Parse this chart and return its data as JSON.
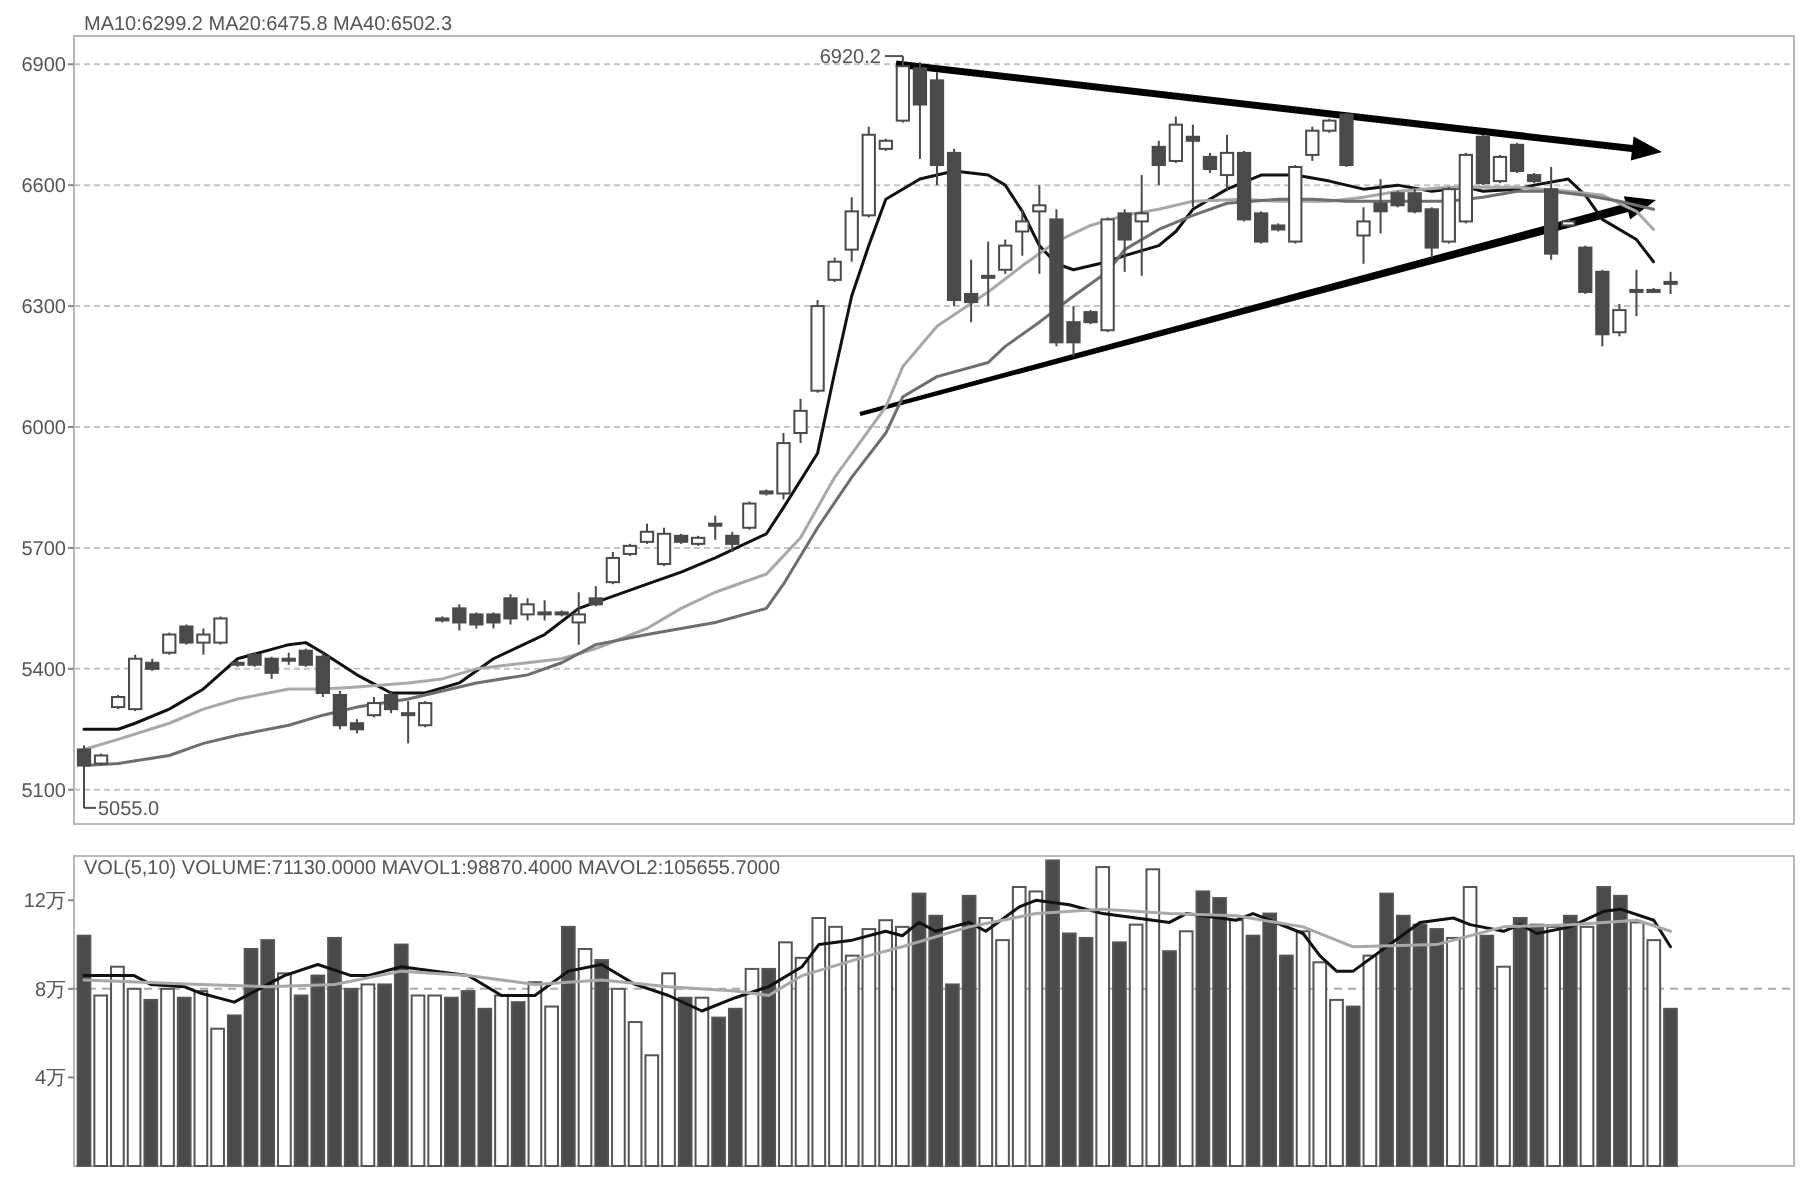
{
  "chart_data": [
    {
      "type": "candlestick",
      "title": "MA10:6299.2 MA20:6475.8 MA40:6502.3",
      "color": "#4a4a4a",
      "categories": [
        null,
        null,
        null,
        null,
        null,
        null,
        null,
        null,
        null,
        null,
        null,
        null,
        null,
        null,
        null,
        null,
        null,
        null,
        null,
        null,
        null,
        null,
        null,
        null,
        null,
        null,
        null,
        null,
        null,
        null,
        null,
        null,
        null,
        null,
        null,
        null,
        null,
        null,
        null,
        null,
        null,
        null,
        null,
        null,
        null,
        null,
        null,
        null,
        null,
        null,
        null,
        null,
        null,
        null,
        null,
        null,
        null,
        null,
        null,
        null,
        null,
        null,
        null,
        null,
        null,
        null,
        null,
        null,
        null,
        null,
        null,
        null,
        null,
        null,
        null,
        null,
        null,
        null,
        null,
        null,
        null,
        null,
        null,
        null,
        null,
        null,
        null,
        null,
        null,
        null,
        null,
        null,
        null,
        null
      ],
      "ohlc": [
        [
          5200,
          5210,
          5055,
          5160
        ],
        [
          5165,
          5190,
          5160,
          5185
        ],
        [
          5305,
          5335,
          5300,
          5330
        ],
        [
          5300,
          5435,
          5295,
          5425
        ],
        [
          5415,
          5425,
          5395,
          5400
        ],
        [
          5440,
          5490,
          5435,
          5485
        ],
        [
          5505,
          5510,
          5460,
          5465
        ],
        [
          5465,
          5500,
          5435,
          5485
        ],
        [
          5465,
          5530,
          5460,
          5525
        ],
        [
          5415,
          5420,
          5405,
          5410
        ],
        [
          5435,
          5440,
          5405,
          5410
        ],
        [
          5425,
          5430,
          5375,
          5390
        ],
        [
          5420,
          5440,
          5410,
          5425
        ],
        [
          5445,
          5450,
          5405,
          5410
        ],
        [
          5430,
          5440,
          5330,
          5340
        ],
        [
          5335,
          5345,
          5250,
          5260
        ],
        [
          5265,
          5275,
          5240,
          5250
        ],
        [
          5285,
          5330,
          5280,
          5315
        ],
        [
          5335,
          5345,
          5290,
          5300
        ],
        [
          5285,
          5320,
          5215,
          5290
        ],
        [
          5260,
          5320,
          5255,
          5315
        ],
        [
          5520,
          5530,
          5515,
          5525
        ],
        [
          5550,
          5560,
          5495,
          5515
        ],
        [
          5535,
          5540,
          5500,
          5510
        ],
        [
          5535,
          5540,
          5500,
          5515
        ],
        [
          5575,
          5585,
          5510,
          5525
        ],
        [
          5535,
          5575,
          5520,
          5560
        ],
        [
          5535,
          5570,
          5520,
          5540
        ],
        [
          5540,
          5545,
          5530,
          5535
        ],
        [
          5515,
          5590,
          5460,
          5535
        ],
        [
          5575,
          5605,
          5555,
          5560
        ],
        [
          5615,
          5690,
          5610,
          5675
        ],
        [
          5685,
          5710,
          5680,
          5705
        ],
        [
          5715,
          5760,
          5710,
          5740
        ],
        [
          5660,
          5750,
          5655,
          5735
        ],
        [
          5730,
          5735,
          5710,
          5715
        ],
        [
          5710,
          5730,
          5705,
          5725
        ],
        [
          5755,
          5780,
          5720,
          5760
        ],
        [
          5730,
          5740,
          5690,
          5710
        ],
        [
          5750,
          5815,
          5745,
          5810
        ],
        [
          5835,
          5845,
          5830,
          5840
        ],
        [
          5835,
          5985,
          5820,
          5960
        ],
        [
          5985,
          6070,
          5960,
          6040
        ],
        [
          6090,
          6315,
          6085,
          6300
        ],
        [
          6365,
          6420,
          6360,
          6410
        ],
        [
          6440,
          6570,
          6410,
          6535
        ],
        [
          6525,
          6745,
          6520,
          6725
        ],
        [
          6690,
          6715,
          6685,
          6710
        ],
        [
          6760,
          6920.2,
          6755,
          6895
        ],
        [
          6890,
          6905,
          6665,
          6800
        ],
        [
          6860,
          6880,
          6600,
          6650
        ],
        [
          6680,
          6690,
          6300,
          6315
        ],
        [
          6330,
          6415,
          6260,
          6310
        ],
        [
          6370,
          6460,
          6300,
          6375
        ],
        [
          6390,
          6465,
          6380,
          6450
        ],
        [
          6485,
          6540,
          6425,
          6510
        ],
        [
          6535,
          6600,
          6380,
          6550
        ],
        [
          6515,
          6540,
          6200,
          6210
        ],
        [
          6260,
          6300,
          6175,
          6210
        ],
        [
          6285,
          6290,
          6255,
          6260
        ],
        [
          6240,
          6520,
          6235,
          6515
        ],
        [
          6530,
          6540,
          6385,
          6465
        ],
        [
          6510,
          6625,
          6375,
          6530
        ],
        [
          6695,
          6710,
          6600,
          6650
        ],
        [
          6660,
          6770,
          6655,
          6750
        ],
        [
          6720,
          6750,
          6545,
          6710
        ],
        [
          6670,
          6680,
          6630,
          6640
        ],
        [
          6625,
          6725,
          6585,
          6680
        ],
        [
          6680,
          6685,
          6510,
          6515
        ],
        [
          6530,
          6535,
          6455,
          6460
        ],
        [
          6500,
          6505,
          6485,
          6490
        ],
        [
          6460,
          6650,
          6455,
          6645
        ],
        [
          6675,
          6745,
          6660,
          6735
        ],
        [
          6735,
          6765,
          6730,
          6760
        ],
        [
          6775,
          6780,
          6645,
          6650
        ],
        [
          6475,
          6545,
          6405,
          6510
        ],
        [
          6555,
          6615,
          6480,
          6535
        ],
        [
          6580,
          6585,
          6545,
          6550
        ],
        [
          6580,
          6590,
          6530,
          6535
        ],
        [
          6540,
          6545,
          6420,
          6445
        ],
        [
          6460,
          6595,
          6455,
          6590
        ],
        [
          6510,
          6680,
          6505,
          6675
        ],
        [
          6720,
          6725,
          6600,
          6605
        ],
        [
          6610,
          6675,
          6605,
          6670
        ],
        [
          6700,
          6705,
          6630,
          6635
        ],
        [
          6625,
          6630,
          6605,
          6610
        ],
        [
          6590,
          6645,
          6415,
          6430
        ],
        [
          6500,
          6515,
          6495,
          6510
        ],
        [
          6445,
          6450,
          6330,
          6335
        ],
        [
          6385,
          6390,
          6200,
          6230
        ],
        [
          6235,
          6305,
          6225,
          6290
        ],
        [
          6335,
          6390,
          6275,
          6340
        ],
        [
          6340,
          6345,
          6335,
          6335
        ],
        [
          6355,
          6385,
          6330,
          6360
        ]
      ],
      "series": [
        {
          "type": "line",
          "color": "#111111",
          "values": [
            5250,
            null,
            5250,
            5265,
            null,
            5300,
            null,
            5350,
            null,
            5425,
            null,
            null,
            5460,
            5465,
            5440,
            null,
            5385,
            null,
            5340,
            null,
            5340,
            null,
            5365,
            null,
            5425,
            null,
            null,
            5485,
            null,
            5550,
            5565,
            null,
            null,
            5610,
            null,
            5640,
            null,
            5675,
            null,
            null,
            5735,
            5800,
            null,
            5935,
            6135,
            6325,
            6450,
            6565,
            null,
            6615,
            null,
            6635,
            null,
            6625,
            6600,
            6535,
            6450,
            6405,
            6390,
            null,
            6410,
            6425,
            null,
            6450,
            6485,
            6540,
            null,
            6590,
            null,
            6625,
            null,
            6625,
            null,
            6610,
            null,
            6590,
            null,
            6600,
            null,
            6585,
            null,
            6595,
            6585,
            null,
            6590,
            6600,
            null,
            6615,
            6575,
            6515,
            null,
            6465,
            6410,
            null
          ]
        },
        {
          "type": "line",
          "color": "#a8a8a8",
          "values": [
            5200,
            null,
            5225,
            null,
            null,
            5265,
            null,
            5300,
            null,
            5325,
            null,
            null,
            5350,
            null,
            5350,
            null,
            5355,
            null,
            null,
            5365,
            null,
            5375,
            null,
            5400,
            null,
            null,
            5415,
            null,
            5425,
            null,
            5450,
            null,
            null,
            5500,
            null,
            5550,
            null,
            5590,
            null,
            null,
            5635,
            null,
            5725,
            null,
            5875,
            null,
            null,
            6050,
            6150,
            null,
            6250,
            null,
            null,
            6335,
            null,
            6400,
            null,
            6460,
            null,
            6500,
            null,
            6525,
            null,
            6540,
            null,
            6560,
            null,
            null,
            6565,
            null,
            6560,
            null,
            null,
            6560,
            null,
            6570,
            null,
            6585,
            null,
            null,
            6595,
            null,
            6595,
            null,
            6595,
            null,
            null,
            6585,
            null,
            6575,
            null,
            6535,
            6490,
            null
          ]
        },
        {
          "type": "line",
          "color": "#6e6e6e",
          "values": [
            5160,
            null,
            5165,
            null,
            null,
            5185,
            null,
            5215,
            null,
            5235,
            null,
            null,
            5260,
            null,
            5285,
            null,
            5305,
            null,
            null,
            5325,
            null,
            5345,
            null,
            5365,
            null,
            null,
            5385,
            null,
            5415,
            null,
            5460,
            null,
            null,
            5485,
            null,
            5500,
            null,
            5515,
            null,
            null,
            5550,
            5610,
            null,
            5750,
            null,
            5875,
            null,
            5985,
            6075,
            null,
            6125,
            null,
            null,
            6160,
            6200,
            null,
            6260,
            null,
            6325,
            null,
            6385,
            6440,
            null,
            6490,
            null,
            6525,
            null,
            6555,
            null,
            null,
            6565,
            null,
            6565,
            null,
            6560,
            null,
            null,
            6560,
            null,
            null,
            6560,
            null,
            6570,
            null,
            6585,
            null,
            6585,
            null,
            6575,
            null,
            6560,
            null,
            6540,
            null
          ]
        }
      ],
      "ylim": [
        5015,
        6970
      ],
      "yticks": [
        5100,
        5400,
        5700,
        6000,
        6300,
        6600,
        6900
      ],
      "grid": "y",
      "annotations": [
        "6920.2",
        "5055.0"
      ]
    },
    {
      "type": "bar",
      "title": "VOL(5,10) VOLUME:71130.0000 MAVOL1:98870.4000 MAVOL2:105655.7000",
      "categories": [
        null,
        null,
        null,
        null,
        null,
        null,
        null,
        null,
        null,
        null,
        null,
        null,
        null,
        null,
        null,
        null,
        null,
        null,
        null,
        null,
        null,
        null,
        null,
        null,
        null,
        null,
        null,
        null,
        null,
        null,
        null,
        null,
        null,
        null,
        null,
        null,
        null,
        null,
        null,
        null,
        null,
        null,
        null,
        null,
        null,
        null,
        null,
        null,
        null,
        null,
        null,
        null,
        null,
        null,
        null,
        null,
        null,
        null,
        null,
        null,
        null,
        null,
        null,
        null,
        null,
        null,
        null,
        null,
        null,
        null,
        null,
        null,
        null,
        null,
        null,
        null,
        null,
        null,
        null,
        null,
        null,
        null,
        null,
        null,
        null,
        null,
        null,
        null,
        null,
        null,
        null,
        null,
        null,
        null,
        null,
        null
      ],
      "series": [
        {
          "values": [
            10.4,
            7.7,
            9.0,
            8.0,
            7.5,
            8.0,
            7.6,
            7.9,
            6.2,
            6.8,
            9.8,
            10.2,
            8.7,
            7.7,
            8.6,
            10.3,
            8.0,
            8.2,
            8.2,
            10.0,
            7.7,
            7.7,
            7.6,
            7.9,
            7.1,
            7.7,
            7.4,
            8.3,
            7.2,
            10.8,
            9.8,
            9.3,
            8.0,
            6.5,
            5.0,
            8.7,
            7.6,
            7.6,
            6.7,
            7.1,
            8.9,
            8.9,
            10.1,
            9.4,
            11.2,
            10.8,
            9.5,
            10.7,
            11.1,
            10.8,
            12.3,
            11.3,
            8.2,
            12.2,
            11.2,
            10.2,
            12.6,
            12.4,
            13.8,
            10.5,
            10.3,
            13.5,
            10.1,
            10.9,
            13.4,
            9.7,
            10.6,
            12.4,
            12.1,
            11.1,
            10.4,
            11.4,
            9.5,
            10.6,
            9.2,
            7.5,
            7.2,
            9.5,
            12.3,
            11.3,
            10.9,
            10.7,
            10.3,
            12.6,
            10.4,
            9.0,
            11.2,
            10.9,
            10.8,
            11.3,
            10.8,
            12.6,
            12.2,
            11.0,
            10.2,
            7.1
          ],
          "colors": [
            "#4a4a4a",
            "#ffffff",
            "#ffffff",
            "#ffffff",
            "#4a4a4a",
            "#ffffff",
            "#4a4a4a",
            "#ffffff",
            "#ffffff",
            "#4a4a4a",
            "#4a4a4a",
            "#4a4a4a",
            "#ffffff",
            "#4a4a4a",
            "#4a4a4a",
            "#4a4a4a",
            "#4a4a4a",
            "#ffffff",
            "#4a4a4a",
            "#4a4a4a",
            "#ffffff",
            "#ffffff",
            "#4a4a4a",
            "#4a4a4a",
            "#4a4a4a",
            "#ffffff",
            "#4a4a4a",
            "#ffffff",
            "#ffffff",
            "#4a4a4a",
            "#ffffff",
            "#4a4a4a",
            "#ffffff",
            "#ffffff",
            "#ffffff",
            "#ffffff",
            "#4a4a4a",
            "#ffffff",
            "#4a4a4a",
            "#4a4a4a",
            "#ffffff",
            "#4a4a4a",
            "#ffffff",
            "#ffffff",
            "#ffffff",
            "#ffffff",
            "#ffffff",
            "#ffffff",
            "#ffffff",
            "#ffffff",
            "#4a4a4a",
            "#4a4a4a",
            "#4a4a4a",
            "#4a4a4a",
            "#ffffff",
            "#ffffff",
            "#ffffff",
            "#ffffff",
            "#4a4a4a",
            "#4a4a4a",
            "#4a4a4a",
            "#ffffff",
            "#4a4a4a",
            "#ffffff",
            "#ffffff",
            "#4a4a4a",
            "#ffffff",
            "#4a4a4a",
            "#4a4a4a",
            "#ffffff",
            "#4a4a4a",
            "#4a4a4a",
            "#4a4a4a",
            "#ffffff",
            "#ffffff",
            "#ffffff",
            "#4a4a4a",
            "#ffffff",
            "#4a4a4a",
            "#4a4a4a",
            "#4a4a4a",
            "#4a4a4a",
            "#ffffff",
            "#ffffff",
            "#4a4a4a",
            "#ffffff",
            "#4a4a4a",
            "#4a4a4a",
            "#ffffff",
            "#4a4a4a",
            "#ffffff",
            "#4a4a4a",
            "#4a4a4a",
            "#ffffff",
            "#ffffff",
            "#4a4a4a"
          ]
        },
        {
          "type": "line",
          "color": "#111111",
          "values": [
            8.6,
            null,
            8.6,
            8.6,
            8.2,
            null,
            8.1,
            7.8,
            null,
            7.4,
            null,
            8.2,
            8.6,
            null,
            9.1,
            null,
            8.6,
            8.6,
            null,
            9.0,
            null,
            8.8,
            null,
            8.6,
            null,
            7.7,
            null,
            7.7,
            null,
            8.8,
            null,
            9.1,
            null,
            8.2,
            null,
            7.7,
            null,
            7.0,
            null,
            7.6,
            null,
            8.1,
            null,
            9.0,
            10.0,
            null,
            10.2,
            null,
            10.6,
            10.4,
            11.0,
            10.6,
            null,
            11.0,
            10.6,
            null,
            11.7,
            12.0,
            null,
            11.8,
            null,
            11.4,
            null,
            11.2,
            null,
            11.0,
            11.4,
            null,
            null,
            11.1,
            11.4,
            11.1,
            null,
            10.5,
            9.5,
            8.8,
            8.8,
            null,
            9.9,
            null,
            11.0,
            null,
            11.2,
            10.9,
            null,
            10.6,
            10.9,
            10.5,
            null,
            10.8,
            null,
            11.5,
            11.6,
            null,
            11.1,
            9.9
          ]
        },
        {
          "type": "line",
          "color": "#a8a8a8",
          "values": [
            8.4,
            null,
            null,
            null,
            null,
            null,
            null,
            8.2,
            null,
            null,
            null,
            8.1,
            null,
            null,
            null,
            8.2,
            null,
            null,
            null,
            8.8,
            null,
            null,
            null,
            8.6,
            null,
            null,
            null,
            8.2,
            null,
            null,
            null,
            8.4,
            null,
            null,
            null,
            8.1,
            null,
            null,
            null,
            7.9,
            null,
            7.7,
            null,
            8.6,
            null,
            null,
            null,
            9.5,
            null,
            9.9,
            null,
            null,
            null,
            10.8,
            null,
            null,
            null,
            11.4,
            null,
            null,
            null,
            11.6,
            null,
            null,
            null,
            11.4,
            null,
            null,
            null,
            11.3,
            null,
            null,
            null,
            10.8,
            null,
            null,
            9.9,
            null,
            null,
            null,
            null,
            10.0,
            null,
            null,
            null,
            10.8,
            null,
            null,
            null,
            10.9,
            null,
            null,
            null,
            11.1,
            null,
            10.6
          ]
        }
      ],
      "ylim": [
        0,
        14
      ],
      "yticks": [
        {
          "value": 4,
          "label": "4万"
        },
        {
          "value": 8,
          "label": "8万"
        },
        {
          "value": 12,
          "label": "12万"
        }
      ],
      "ref_lines": [
        {
          "axis": "y",
          "value": 8,
          "line_style": "dashed",
          "color": "#aaaaaa"
        }
      ]
    }
  ]
}
